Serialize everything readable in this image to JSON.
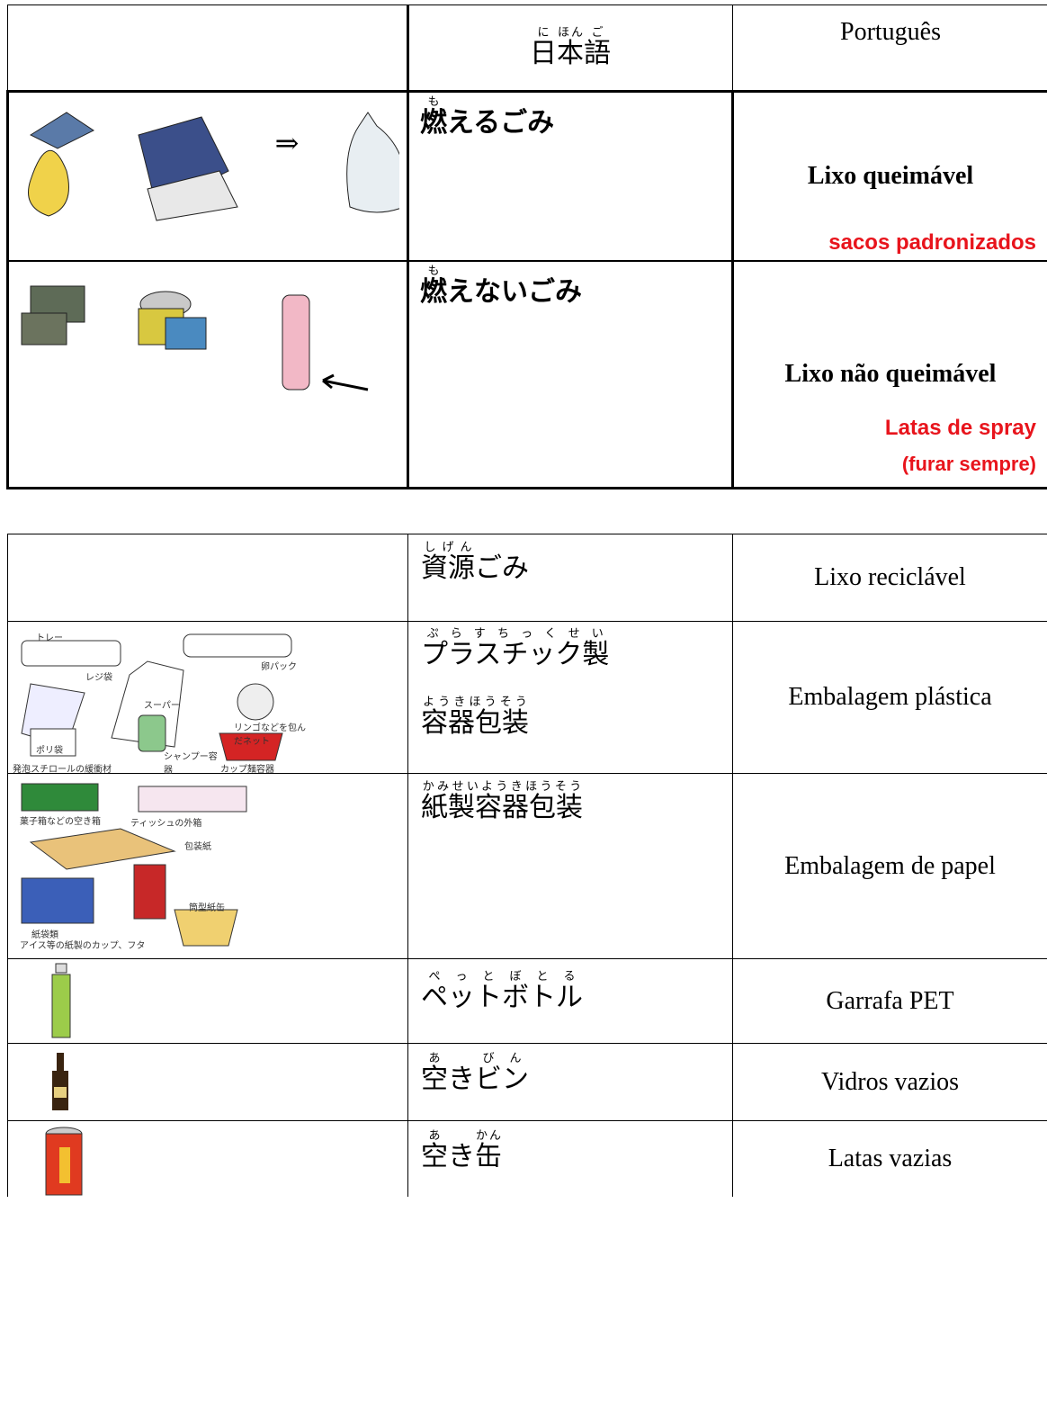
{
  "table1": {
    "header": {
      "japanese": [
        {
          "text": "日",
          "ruby": "に"
        },
        {
          "text": "本",
          "ruby": "ほん"
        },
        {
          "text": "語",
          "ruby": "ご"
        }
      ],
      "portuguese": "Português"
    },
    "rows": [
      {
        "captions": [
          "sacos padronizados"
        ],
        "japanese": [
          {
            "text": "燃",
            "ruby": "も"
          },
          {
            "text": "えるごみ"
          }
        ],
        "portuguese": "Lixo queimável"
      },
      {
        "captions": [
          "Latas de spray",
          "(furar sempre)"
        ],
        "japanese": [
          {
            "text": "燃",
            "ruby": "も"
          },
          {
            "text": "えないごみ"
          }
        ],
        "portuguese": "Lixo não queimável"
      }
    ]
  },
  "table2": {
    "header": {
      "japanese": [
        {
          "text": "資源",
          "ruby": "しげん"
        },
        {
          "text": "ごみ"
        }
      ],
      "portuguese": "Lixo reciclável"
    },
    "rows": [
      {
        "japanese": [
          {
            "text": "プラスチック製",
            "ruby": "ぷらすちっくせい"
          }
        ],
        "japanese2": [
          {
            "text": "容器包装",
            "ruby": "ようきほうそう"
          }
        ],
        "portuguese": "Embalagem plástica",
        "image_labels": [
          "トレー",
          "卵パック",
          "レジ袋",
          "スーパー",
          "ポリ袋",
          "リンゴなどを包んだネット",
          "シャンプー容器",
          "発泡スチロールの緩衝材",
          "カップ麺容器"
        ]
      },
      {
        "japanese": [
          {
            "text": "紙製容器包装",
            "ruby": "かみせいようきほうそう"
          }
        ],
        "portuguese": "Embalagem de papel",
        "image_labels": [
          "菓子箱などの空き箱",
          "ティッシュの外箱",
          "包装紙",
          "紙袋類",
          "筒型紙缶",
          "アイス等の紙製のカップ、フタ"
        ]
      },
      {
        "japanese": [
          {
            "text": "ペットボトル",
            "ruby": "ぺっとぼとる"
          }
        ],
        "portuguese": "Garrafa PET"
      },
      {
        "japanese": [
          {
            "text": "空",
            "ruby": "あ"
          },
          {
            "text": "き"
          },
          {
            "text": "ビン",
            "ruby": "びん"
          }
        ],
        "portuguese": "Vidros vazios"
      },
      {
        "japanese": [
          {
            "text": "空",
            "ruby": "あ"
          },
          {
            "text": "き"
          },
          {
            "text": "缶",
            "ruby": "かん"
          }
        ],
        "portuguese": "Latas vazias"
      }
    ]
  }
}
